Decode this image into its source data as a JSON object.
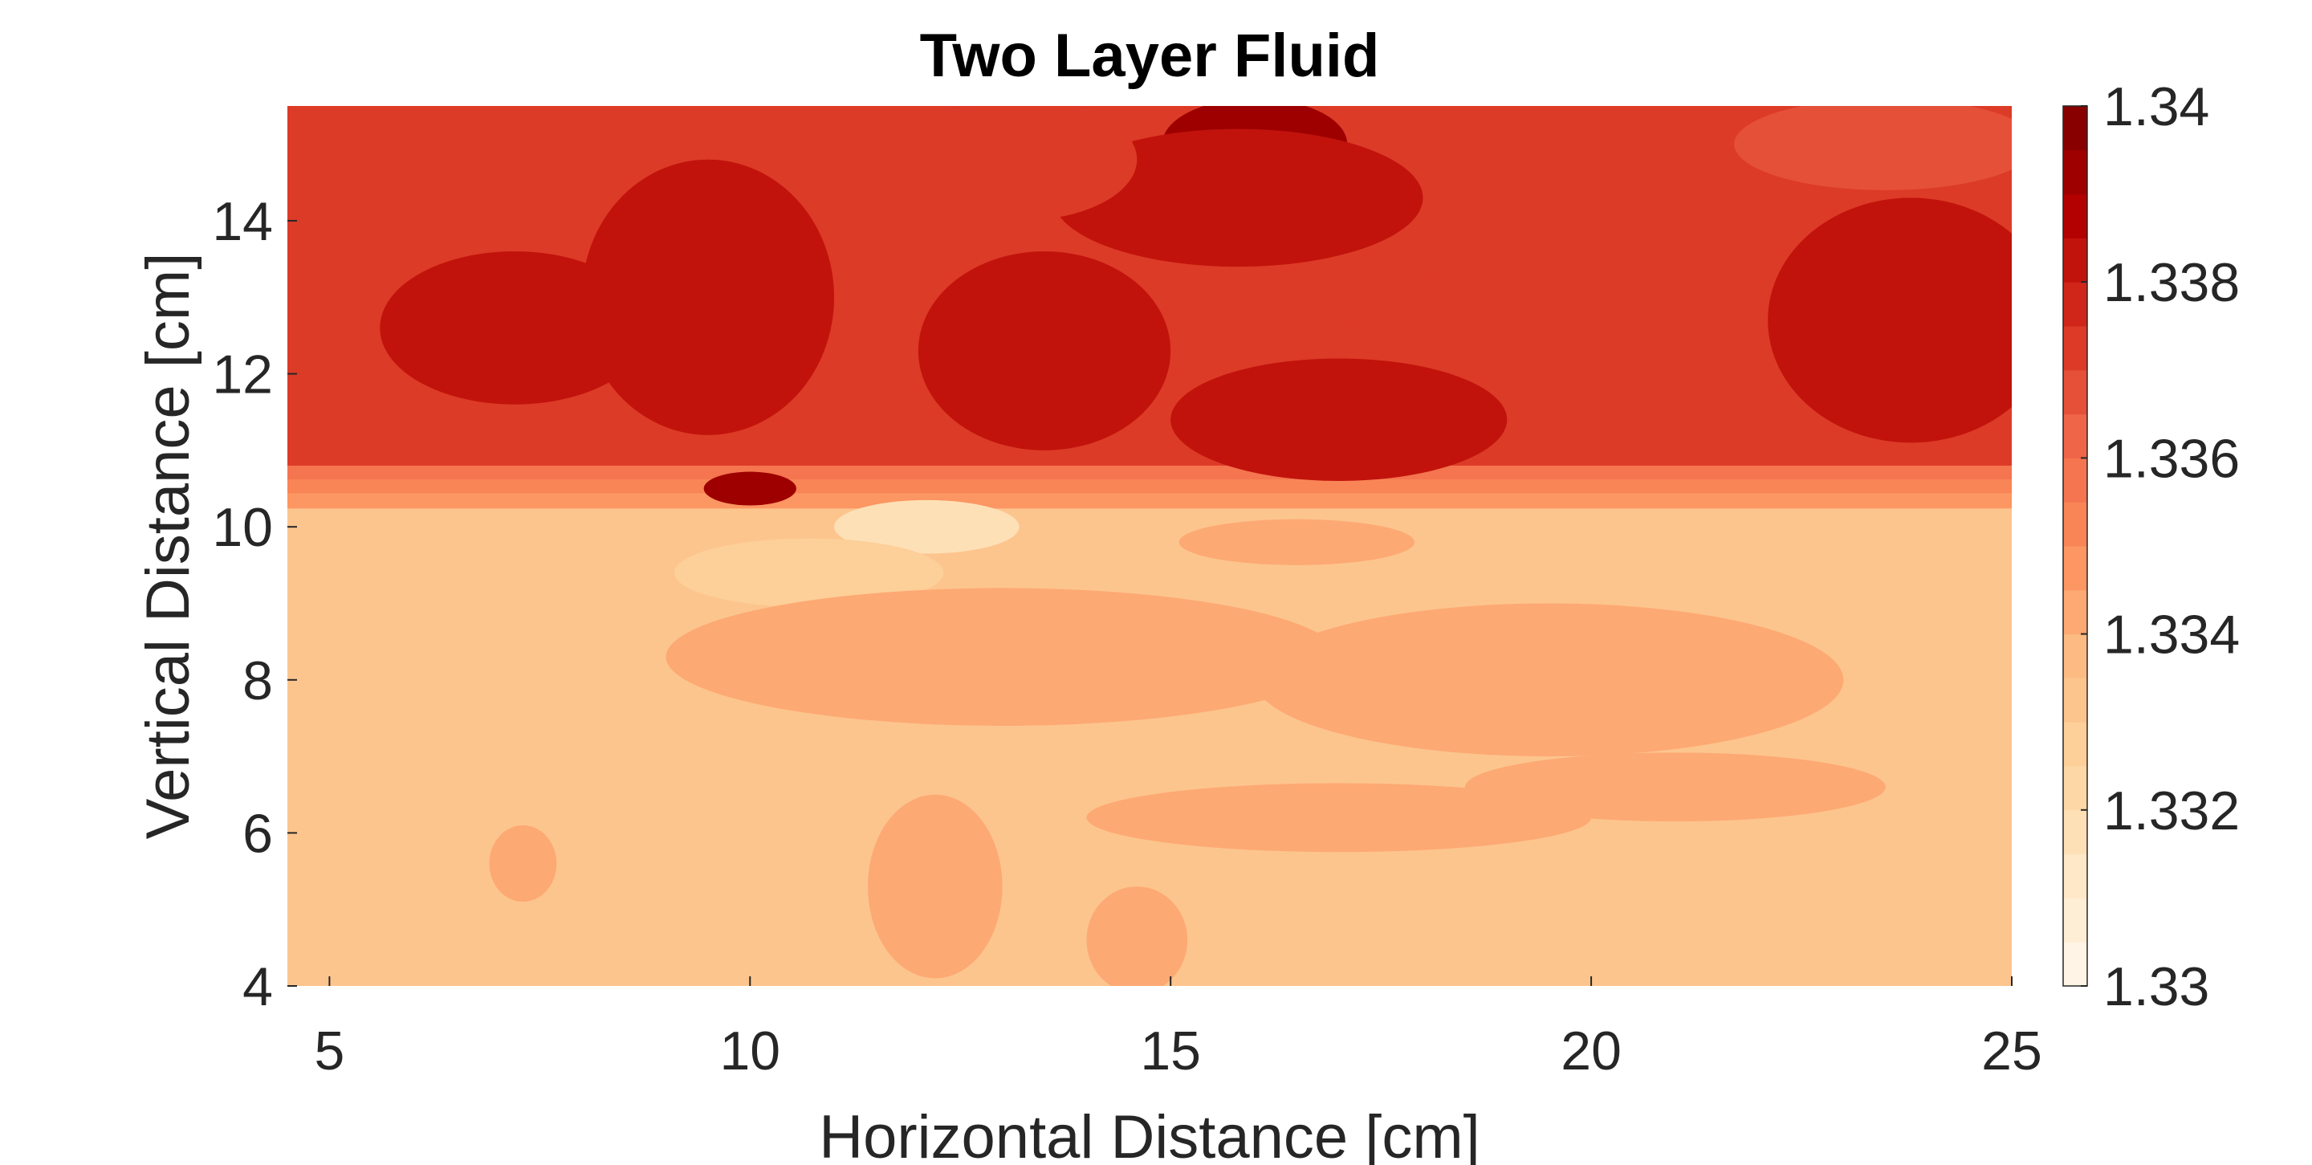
{
  "chart_data": {
    "type": "heatmap",
    "subtype": "filled-contour",
    "title": "Two Layer Fluid",
    "xlabel": "Horizontal Distance [cm]",
    "ylabel": "Vertical Distance [cm]",
    "xlim": [
      4.5,
      25
    ],
    "ylim": [
      4,
      15.5
    ],
    "x_ticks": [
      "5",
      "10",
      "15",
      "20",
      "25"
    ],
    "y_ticks": [
      "4",
      "6",
      "8",
      "10",
      "12",
      "14"
    ],
    "colorbar": {
      "range": [
        1.33,
        1.34
      ],
      "ticks": [
        "1.33",
        "1.332",
        "1.334",
        "1.336",
        "1.338",
        "1.34"
      ],
      "levels": 20,
      "colormap": [
        "#fff7ec",
        "#fee8c8",
        "#fdd49e",
        "#fdbb84",
        "#fc8d59",
        "#ef6548",
        "#d7301f",
        "#b30000",
        "#7f0000"
      ]
    },
    "interface_height_cm": 10.3,
    "regions": [
      {
        "name": "upper layer",
        "y_range": [
          10.3,
          15.5
        ],
        "typical_value": 1.3375
      },
      {
        "name": "lower layer",
        "y_range": [
          4,
          10.3
        ],
        "typical_value": 1.3335
      }
    ],
    "features": [
      {
        "x": 16,
        "y": 15,
        "rx": 1.1,
        "ry": 0.6,
        "value": 1.3392
      },
      {
        "x": 10,
        "y": 10.5,
        "rx": 0.55,
        "ry": 0.22,
        "value": 1.3392
      },
      {
        "x": 9.5,
        "y": 13,
        "rx": 1.5,
        "ry": 1.8,
        "value": 1.3382
      },
      {
        "x": 7.2,
        "y": 12.6,
        "rx": 1.6,
        "ry": 1.0,
        "value": 1.3382
      },
      {
        "x": 13.5,
        "y": 12.3,
        "rx": 1.5,
        "ry": 1.3,
        "value": 1.3382
      },
      {
        "x": 17,
        "y": 11.4,
        "rx": 2.0,
        "ry": 0.8,
        "value": 1.3382
      },
      {
        "x": 15.8,
        "y": 14.3,
        "rx": 2.2,
        "ry": 0.9,
        "value": 1.3382
      },
      {
        "x": 23.8,
        "y": 12.7,
        "rx": 1.7,
        "ry": 1.6,
        "value": 1.3382
      },
      {
        "x": 13.2,
        "y": 14.8,
        "rx": 1.4,
        "ry": 0.8,
        "value": 1.3372
      },
      {
        "x": 17.6,
        "y": 13.0,
        "rx": 1.2,
        "ry": 0.35,
        "value": 1.3372
      },
      {
        "x": 23.5,
        "y": 15.0,
        "rx": 1.8,
        "ry": 0.6,
        "value": 1.3368
      },
      {
        "x": 12.1,
        "y": 10.0,
        "rx": 1.1,
        "ry": 0.35,
        "value": 1.3318
      },
      {
        "x": 10.7,
        "y": 9.4,
        "rx": 1.6,
        "ry": 0.45,
        "value": 1.3328
      },
      {
        "x": 16.5,
        "y": 9.8,
        "rx": 1.4,
        "ry": 0.3,
        "value": 1.3342
      },
      {
        "x": 13,
        "y": 8.3,
        "rx": 4.0,
        "ry": 0.9,
        "value": 1.3342
      },
      {
        "x": 19.5,
        "y": 8.0,
        "rx": 3.5,
        "ry": 1.0,
        "value": 1.3342
      },
      {
        "x": 17,
        "y": 6.2,
        "rx": 3.0,
        "ry": 0.45,
        "value": 1.3342
      },
      {
        "x": 21,
        "y": 6.6,
        "rx": 2.5,
        "ry": 0.45,
        "value": 1.3342
      },
      {
        "x": 12.2,
        "y": 5.3,
        "rx": 0.8,
        "ry": 1.2,
        "value": 1.3342
      },
      {
        "x": 14.6,
        "y": 4.6,
        "rx": 0.6,
        "ry": 0.7,
        "value": 1.3342
      },
      {
        "x": 7.3,
        "y": 5.6,
        "rx": 0.4,
        "ry": 0.5,
        "value": 1.3342
      }
    ]
  }
}
